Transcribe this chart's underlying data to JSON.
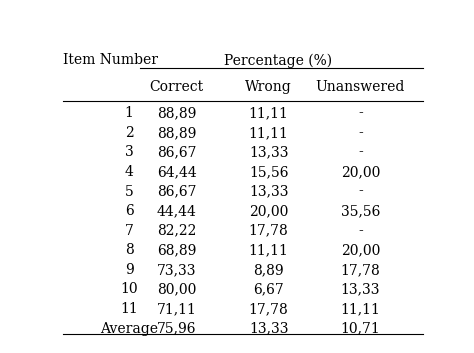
{
  "col_header_row1_left": "Item Number",
  "col_header_row1_right": "Percentage (%)",
  "sub_headers": [
    "Correct",
    "Wrong",
    "Unanswered"
  ],
  "rows": [
    [
      "1",
      "88,89",
      "11,11",
      "-"
    ],
    [
      "2",
      "88,89",
      "11,11",
      "-"
    ],
    [
      "3",
      "86,67",
      "13,33",
      "-"
    ],
    [
      "4",
      "64,44",
      "15,56",
      "20,00"
    ],
    [
      "5",
      "86,67",
      "13,33",
      "-"
    ],
    [
      "6",
      "44,44",
      "20,00",
      "35,56"
    ],
    [
      "7",
      "82,22",
      "17,78",
      "-"
    ],
    [
      "8",
      "68,89",
      "11,11",
      "20,00"
    ],
    [
      "9",
      "73,33",
      "8,89",
      "17,78"
    ],
    [
      "10",
      "80,00",
      "6,67",
      "13,33"
    ],
    [
      "11",
      "71,11",
      "17,78",
      "11,11"
    ],
    [
      "Average",
      "75,96",
      "13,33",
      "10,71"
    ]
  ],
  "bg_color": "#ffffff",
  "text_color": "#000000",
  "font_size": 10,
  "fig_width": 4.74,
  "fig_height": 3.53,
  "dpi": 100
}
